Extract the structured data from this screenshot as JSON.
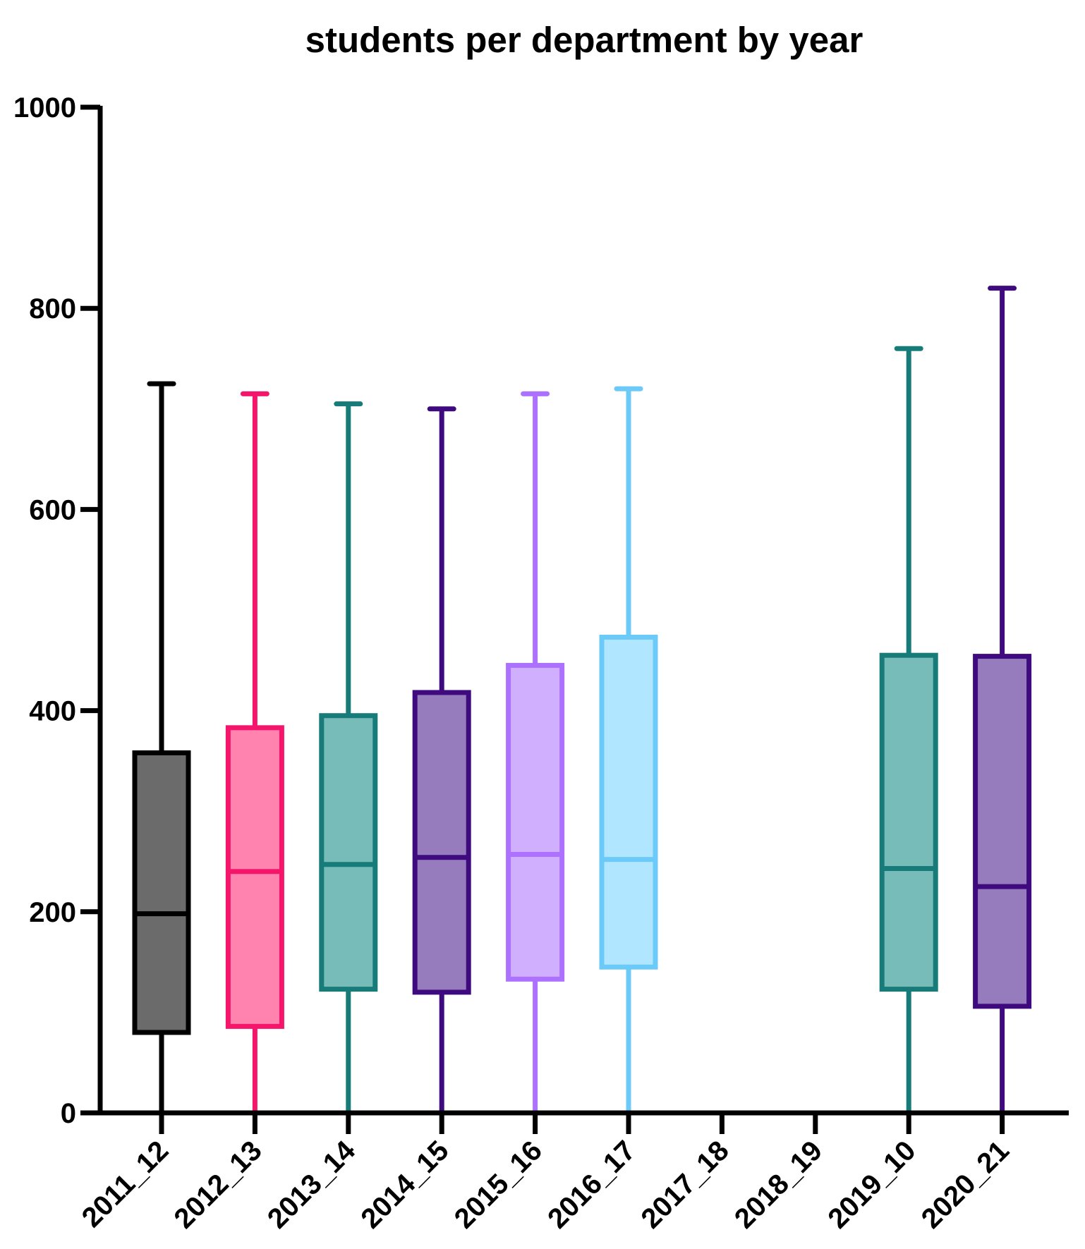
{
  "chart_data": {
    "type": "box",
    "title": "students per department by year",
    "xlabel": "",
    "ylabel": "",
    "ylim": [
      0,
      1000
    ],
    "yticks": [
      0,
      200,
      400,
      600,
      800,
      1000
    ],
    "yticks_text": [
      "0",
      "200",
      "400",
      "600",
      "800",
      "1000"
    ],
    "grid": false,
    "legend": "none",
    "categories": [
      "2011_12",
      "2012_13",
      "2013_14",
      "2014_15",
      "2015_16",
      "2016_17",
      "2017_18",
      "2018_19",
      "2019_10",
      "2020_21"
    ],
    "series": [
      {
        "category": "2011_12",
        "min": 0,
        "q1": 80,
        "median": 198,
        "q3": 358,
        "max": 725,
        "stroke": "#000000",
        "fill": "#6b6b6b"
      },
      {
        "category": "2012_13",
        "min": 0,
        "q1": 86,
        "median": 240,
        "q3": 383,
        "max": 715,
        "stroke": "#f5166b",
        "fill": "#ff82af"
      },
      {
        "category": "2013_14",
        "min": 0,
        "q1": 123,
        "median": 247,
        "q3": 395,
        "max": 705,
        "stroke": "#177b7a",
        "fill": "#77bcb9"
      },
      {
        "category": "2014_15",
        "min": 0,
        "q1": 120,
        "median": 254,
        "q3": 418,
        "max": 700,
        "stroke": "#3f0a7e",
        "fill": "#967cbd"
      },
      {
        "category": "2015_16",
        "min": 0,
        "q1": 133,
        "median": 257,
        "q3": 445,
        "max": 715,
        "stroke": "#ad71ff",
        "fill": "#d1afff"
      },
      {
        "category": "2016_17",
        "min": 0,
        "q1": 145,
        "median": 252,
        "q3": 473,
        "max": 720,
        "stroke": "#6ccaf8",
        "fill": "#b0e6ff"
      },
      {
        "category": "2017_18",
        "empty": true
      },
      {
        "category": "2018_19",
        "empty": true
      },
      {
        "category": "2019_10",
        "min": 0,
        "q1": 123,
        "median": 243,
        "q3": 455,
        "max": 760,
        "stroke": "#177b7a",
        "fill": "#77bcb9"
      },
      {
        "category": "2020_21",
        "min": 0,
        "q1": 106,
        "median": 225,
        "q3": 454,
        "max": 820,
        "stroke": "#3f0a7e",
        "fill": "#967cbd"
      }
    ]
  }
}
